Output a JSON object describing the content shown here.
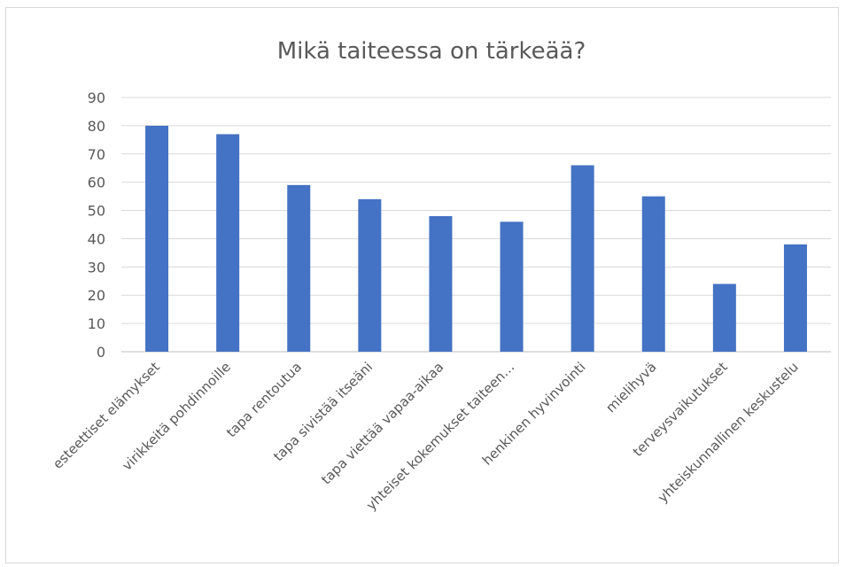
{
  "chart_data": {
    "type": "bar",
    "title": "Mikä taiteessa on tärkeää?",
    "xlabel": "",
    "ylabel": "",
    "categories": [
      "esteettiset elämykset",
      "virikkeitä pohdinnoille",
      "tapa rentoutua",
      "tapa sivistää itseäni",
      "tapa viettää vapaa-aikaa",
      "yhteiset kokemukset taiteen…",
      "henkinen hyvinvointi",
      "mielihyvä",
      "terveysvaikutukset",
      "yhteiskunnallinen keskustelu"
    ],
    "values": [
      80,
      77,
      59,
      54,
      48,
      46,
      66,
      55,
      24,
      38
    ],
    "ylim": [
      0,
      90
    ],
    "yticks": [
      "0",
      "10",
      "20",
      "30",
      "40",
      "50",
      "60",
      "70",
      "80",
      "90"
    ],
    "grid": true,
    "legend": "none",
    "bar_color": "#4472c4"
  }
}
